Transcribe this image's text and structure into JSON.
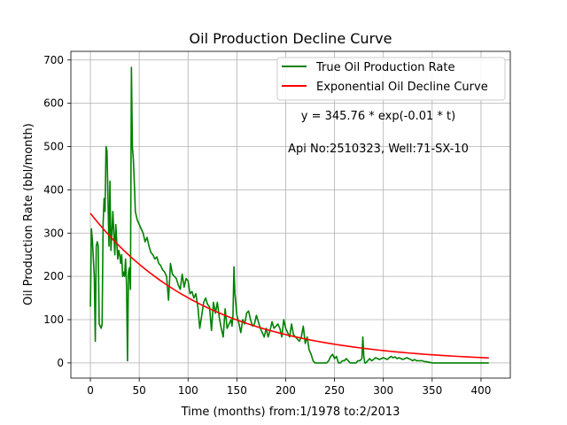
{
  "chart_data": {
    "type": "line",
    "title": "Oil Production Decline Curve",
    "xlabel": "Time (months) from:1/1978 to:2/2013",
    "ylabel": "Oil Production Rate (bbl/month)",
    "xlim": [
      -20,
      430
    ],
    "ylim": [
      -35,
      720
    ],
    "xticks": [
      0,
      50,
      100,
      150,
      200,
      250,
      300,
      350,
      400
    ],
    "yticks": [
      0,
      100,
      200,
      300,
      400,
      500,
      600,
      700
    ],
    "grid": true,
    "legend_position": "top-right",
    "annotations": [
      "y = 345.76 * exp(-0.01 * t)",
      "Api No:2510323, Well:71-SX-10"
    ],
    "series": [
      {
        "name": "True Oil Production Rate",
        "color": "#008000",
        "x": [
          0,
          1,
          2,
          4,
          5,
          6,
          7,
          8,
          9,
          10,
          11,
          12,
          13,
          14,
          15,
          16,
          17,
          18,
          19,
          20,
          21,
          22,
          23,
          24,
          25,
          26,
          27,
          28,
          29,
          30,
          31,
          32,
          33,
          34,
          35,
          36,
          37,
          38,
          39,
          40,
          41,
          42,
          43,
          44,
          45,
          46,
          47,
          48,
          50,
          52,
          54,
          56,
          58,
          60,
          62,
          64,
          66,
          68,
          70,
          72,
          74,
          76,
          78,
          80,
          82,
          84,
          86,
          88,
          90,
          92,
          94,
          96,
          98,
          100,
          102,
          104,
          106,
          108,
          110,
          112,
          114,
          116,
          118,
          120,
          122,
          124,
          126,
          128,
          130,
          132,
          134,
          136,
          138,
          140,
          142,
          144,
          145,
          146,
          147,
          148,
          150,
          152,
          154,
          156,
          158,
          160,
          162,
          164,
          166,
          168,
          170,
          172,
          174,
          176,
          178,
          180,
          182,
          184,
          186,
          188,
          190,
          192,
          194,
          196,
          198,
          200,
          202,
          204,
          206,
          208,
          210,
          212,
          214,
          216,
          218,
          220,
          222,
          224,
          226,
          228,
          230,
          232,
          234,
          236,
          238,
          240,
          242,
          244,
          246,
          248,
          250,
          252,
          254,
          256,
          258,
          260,
          262,
          264,
          266,
          268,
          270,
          272,
          274,
          276,
          278,
          279,
          280,
          281,
          282,
          284,
          286,
          288,
          290,
          292,
          294,
          296,
          298,
          300,
          302,
          304,
          306,
          308,
          310,
          312,
          314,
          316,
          318,
          320,
          322,
          324,
          326,
          328,
          330,
          332,
          334,
          336,
          338,
          340,
          342,
          344,
          346,
          348,
          350,
          360,
          370,
          380,
          390,
          400,
          408
        ],
        "y": [
          130,
          310,
          285,
          200,
          50,
          270,
          280,
          270,
          90,
          85,
          80,
          90,
          320,
          380,
          350,
          500,
          490,
          380,
          270,
          420,
          260,
          300,
          350,
          300,
          250,
          320,
          280,
          240,
          260,
          250,
          230,
          250,
          200,
          210,
          200,
          240,
          180,
          5,
          210,
          220,
          170,
          683,
          500,
          470,
          415,
          350,
          340,
          330,
          320,
          310,
          300,
          280,
          290,
          270,
          255,
          250,
          240,
          245,
          230,
          225,
          215,
          210,
          200,
          145,
          230,
          205,
          200,
          195,
          180,
          170,
          205,
          175,
          195,
          190,
          160,
          165,
          150,
          160,
          130,
          80,
          110,
          140,
          150,
          135,
          130,
          75,
          140,
          115,
          140,
          105,
          80,
          60,
          125,
          80,
          90,
          100,
          85,
          110,
          222,
          160,
          110,
          92,
          70,
          100,
          90,
          115,
          120,
          100,
          85,
          90,
          110,
          95,
          80,
          70,
          60,
          80,
          60,
          75,
          95,
          80,
          85,
          90,
          80,
          60,
          100,
          80,
          70,
          60,
          90,
          65,
          60,
          55,
          50,
          60,
          85,
          45,
          60,
          30,
          20,
          5,
          0,
          0,
          0,
          0,
          0,
          0,
          0,
          5,
          15,
          20,
          10,
          15,
          0,
          0,
          5,
          5,
          10,
          5,
          0,
          0,
          0,
          0,
          5,
          5,
          10,
          60,
          15,
          0,
          0,
          5,
          10,
          5,
          8,
          12,
          10,
          8,
          10,
          12,
          10,
          8,
          12,
          15,
          12,
          14,
          10,
          12,
          10,
          8,
          10,
          12,
          10,
          8,
          5,
          8,
          5,
          5,
          5,
          5,
          3,
          3,
          2,
          1,
          0,
          0,
          0,
          0,
          0,
          0,
          0
        ]
      },
      {
        "name": "Exponential Oil Decline Curve",
        "color": "#ff0000",
        "model": {
          "a": 345.76,
          "b": 0.00832,
          "x_start": 0,
          "x_end": 408
        }
      }
    ]
  }
}
